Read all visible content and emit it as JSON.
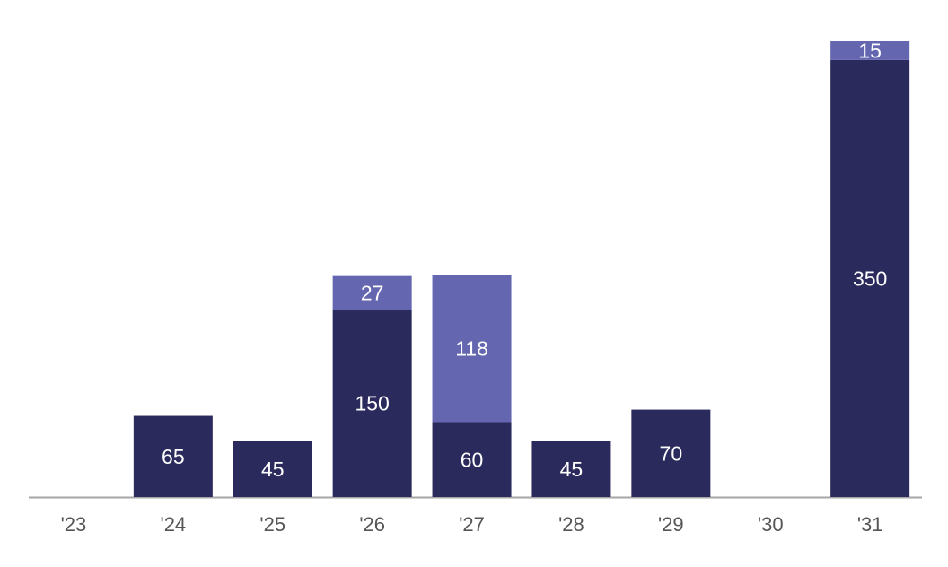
{
  "chart_data": {
    "type": "stacked-bar",
    "categories": [
      "'23",
      "'24",
      "'25",
      "'26",
      "'27",
      "'28",
      "'29",
      "'30",
      "'31"
    ],
    "series": [
      {
        "color": "#2b2a5c",
        "values": [
          null,
          65,
          45,
          150,
          60,
          45,
          70,
          null,
          350
        ]
      },
      {
        "color": "#6466b0",
        "values": [
          null,
          null,
          null,
          27,
          118,
          null,
          null,
          null,
          15
        ]
      }
    ],
    "ylim": [
      0,
      365
    ]
  }
}
